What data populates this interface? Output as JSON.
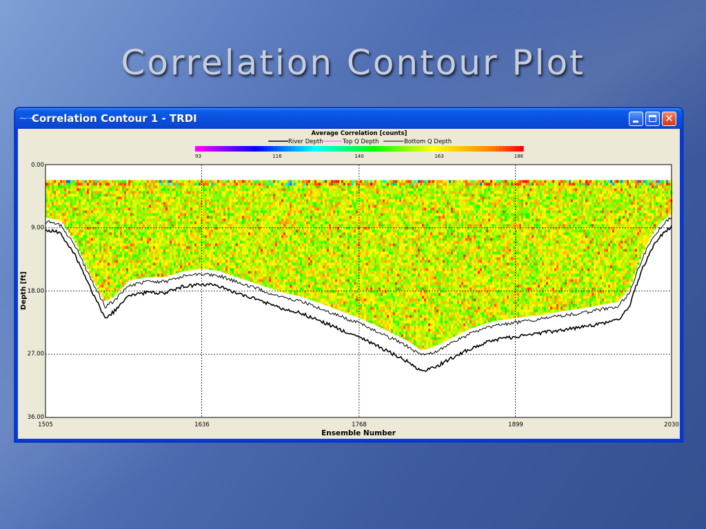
{
  "slide": {
    "title": "Correlation Contour Plot"
  },
  "window": {
    "title": "Correlation Contour 1 - TRDI",
    "icon": "wave-icon",
    "controls": {
      "minimize": "minimize-icon",
      "maximize": "maximize-icon",
      "close_glyph": "✕"
    }
  },
  "colors": {
    "river_depth": "#000000",
    "top_q_depth": "#ff66ff",
    "bottom_q_depth": "#000000",
    "colormap": [
      "#ff00ff",
      "#8000ff",
      "#0000ff",
      "#0080ff",
      "#00ffff",
      "#00ff80",
      "#00ff00",
      "#80ff00",
      "#ffff00",
      "#ffc000",
      "#ff8000",
      "#ff0000"
    ]
  },
  "chart_data": {
    "type": "heatmap",
    "colorbar_title": "Average Correlation [counts]",
    "colorbar_ticks": [
      "93",
      "116",
      "140",
      "163",
      "186"
    ],
    "colorbar_range": [
      93,
      186
    ],
    "legend": [
      "River Depth",
      "Top Q Depth",
      "Bottom Q Depth"
    ],
    "legend_position": "top-center",
    "xlabel": "Ensemble Number",
    "ylabel": "Depth [ft]",
    "x_ticks": [
      "1505",
      "1636",
      "1768",
      "1899",
      "2030"
    ],
    "y_ticks": [
      "0.00",
      "9.00",
      "18.00",
      "27.00",
      "36.00"
    ],
    "xlim": [
      1505,
      2030
    ],
    "ylim": [
      0,
      36
    ],
    "y_inverted": true,
    "grid": true,
    "top_q_depth_ft": 2.2,
    "river_depth": {
      "x": [
        1505,
        1510,
        1518,
        1530,
        1545,
        1555,
        1562,
        1575,
        1590,
        1605,
        1620,
        1636,
        1650,
        1665,
        1680,
        1700,
        1720,
        1740,
        1768,
        1790,
        1810,
        1820,
        1830,
        1845,
        1860,
        1880,
        1899,
        1920,
        1940,
        1960,
        1975,
        1985,
        1995,
        2005,
        2015,
        2022,
        2030
      ],
      "y": [
        9.4,
        9.4,
        9.8,
        13.0,
        18.5,
        21.8,
        21.0,
        18.7,
        18.2,
        18.3,
        17.4,
        17.0,
        17.3,
        18.3,
        19.1,
        20.3,
        21.2,
        22.6,
        24.6,
        26.4,
        28.2,
        29.4,
        29.0,
        27.6,
        26.3,
        25.0,
        24.5,
        24.0,
        23.5,
        23.0,
        22.5,
        22.2,
        20.0,
        15.0,
        11.5,
        10.0,
        8.8
      ]
    },
    "bottom_q_depth": {
      "x": [
        1505,
        1510,
        1518,
        1530,
        1545,
        1555,
        1562,
        1575,
        1590,
        1605,
        1620,
        1636,
        1650,
        1665,
        1680,
        1700,
        1720,
        1740,
        1768,
        1790,
        1810,
        1820,
        1830,
        1845,
        1860,
        1880,
        1899,
        1920,
        1940,
        1960,
        1975,
        1985,
        1995,
        2005,
        2015,
        2022,
        2030
      ],
      "y": [
        8.2,
        8.2,
        8.6,
        11.6,
        17.0,
        20.2,
        19.5,
        17.2,
        16.7,
        16.7,
        15.9,
        15.5,
        15.8,
        16.7,
        17.5,
        18.7,
        19.5,
        20.8,
        22.6,
        24.3,
        26.0,
        27.2,
        26.8,
        25.5,
        24.2,
        23.0,
        22.5,
        22.0,
        21.5,
        21.0,
        20.5,
        20.2,
        18.2,
        13.5,
        10.2,
        8.7,
        7.5
      ]
    },
    "data_bottom_depth": {
      "x": [
        1505,
        1518,
        1530,
        1545,
        1555,
        1562,
        1575,
        1590,
        1605,
        1620,
        1636,
        1650,
        1665,
        1680,
        1700,
        1720,
        1740,
        1768,
        1790,
        1810,
        1820,
        1830,
        1845,
        1860,
        1880,
        1899,
        1920,
        1940,
        1960,
        1975,
        1985,
        1995,
        2005,
        2015,
        2022,
        2030
      ],
      "y": [
        7.5,
        8.0,
        11.0,
        16.5,
        19.5,
        18.8,
        16.5,
        16.0,
        16.0,
        15.2,
        14.8,
        15.1,
        16.0,
        16.8,
        18.0,
        18.8,
        20.0,
        21.8,
        23.5,
        25.2,
        26.4,
        26.0,
        24.7,
        23.4,
        22.3,
        21.8,
        21.4,
        20.8,
        20.3,
        19.8,
        19.5,
        17.5,
        12.8,
        9.5,
        8.0,
        7.0
      ]
    }
  }
}
